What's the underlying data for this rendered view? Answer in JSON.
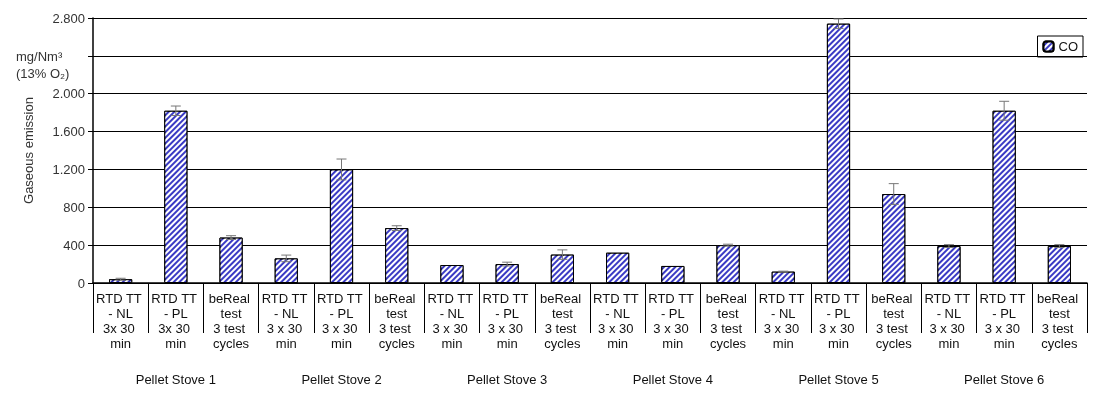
{
  "chart_data": {
    "type": "bar",
    "ylabel": "Gaseous emission",
    "annotations": [
      "mg/Nm³ (13% O₂)",
      "Pellet Stove 1",
      "Pellet Stove 2",
      "Pellet Stove 3",
      "Pellet Stove 4",
      "Pellet Stove 5",
      "Pellet Stove 6"
    ],
    "categories": [
      "RTD TT - NL\n3x 30 min",
      "RTD TT - PL\n3x 30 min",
      "beReal test\n3 test cycles",
      "RTD TT - NL\n3 x 30 min",
      "RTD TT - PL\n3 x 30 min",
      "beReal test\n3 test cycles",
      "RTD TT - NL\n3 x 30 min",
      "RTD TT - PL\n3 x 30 min",
      "beReal test\n3 test cycles",
      "RTD TT - NL\n3 x 30 min",
      "RTD TT - PL\n3 x 30 min",
      "beReal test\n3 test cycles",
      "RTD TT - NL\n3 x 30 min",
      "RTD TT - PL\n3 x 30 min",
      "beReal test\n3 test cycles",
      "RTD TT - NL\n3 x 30 min",
      "RTD TT - PL\n3 x 30 min",
      "beReal test\n3 test cycles"
    ],
    "series": [
      {
        "name": "CO",
        "color": "#3a3ac4",
        "values": [
          40,
          1820,
          480,
          260,
          1200,
          580,
          190,
          200,
          300,
          320,
          180,
          400,
          120,
          2740,
          940,
          390,
          1820,
          390
        ],
        "errors": [
          10,
          50,
          20,
          35,
          110,
          25,
          null,
          20,
          50,
          null,
          null,
          10,
          5,
          50,
          110,
          15,
          100,
          15
        ]
      }
    ],
    "ylim": [
      0,
      2800
    ],
    "yticks": [
      0,
      400,
      800,
      {
        "value": 1200,
        "label": "1.200"
      },
      {
        "value": 1600,
        "label": "1.600"
      },
      {
        "value": 2000,
        "label": "2.000"
      },
      {
        "value": 2400,
        "label": null
      },
      {
        "value": 2800,
        "label": "2.800"
      }
    ],
    "grid": "y",
    "legend": "top right"
  }
}
